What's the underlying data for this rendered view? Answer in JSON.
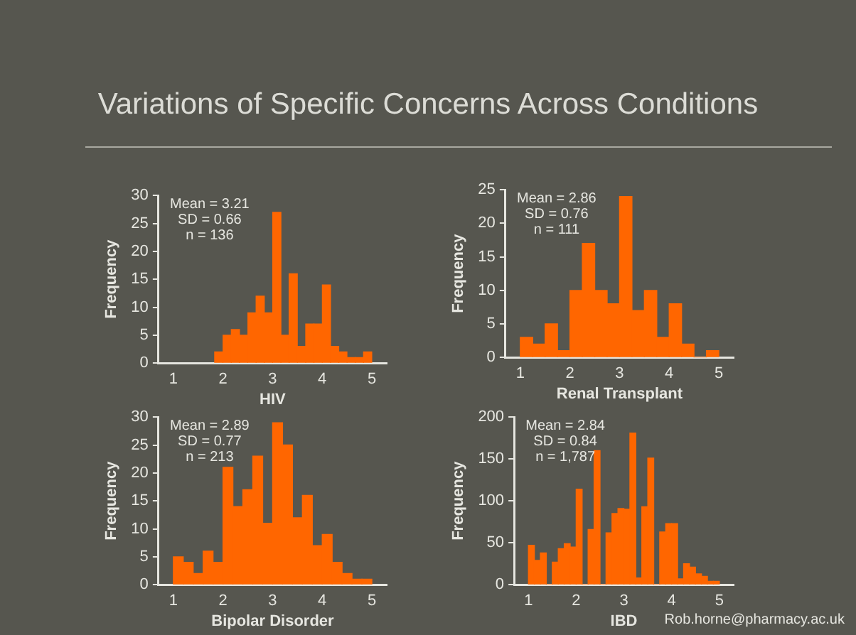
{
  "chart_data": [
    {
      "type": "histogram",
      "title": "Variations of Specific Concerns Across Conditions",
      "xlabel": "HIV",
      "ylabel": "Frequency",
      "color": "#ff6600",
      "bins": [
        1.83,
        2.0,
        2.17,
        2.33,
        2.5,
        2.67,
        2.83,
        3.0,
        3.17,
        3.33,
        3.5,
        3.67,
        3.83,
        4.0,
        4.17,
        4.33,
        4.5,
        4.67,
        4.83,
        5.0
      ],
      "values": [
        2,
        5,
        6,
        5,
        9,
        12,
        9,
        27,
        5,
        16,
        3,
        7,
        7,
        14,
        3,
        2,
        1,
        1,
        2
      ],
      "xlim": [
        0.7,
        5.3
      ],
      "xticks": [
        1,
        2,
        3,
        4,
        5
      ],
      "ylim": [
        0,
        30
      ],
      "yticks": [
        0,
        5,
        10,
        15,
        20,
        25,
        30
      ],
      "grid": false,
      "legend": false,
      "annotations": [
        "Mean = 3.21",
        "SD = 0.66",
        "n = 136"
      ]
    },
    {
      "type": "histogram",
      "xlabel": "Renal Transplant",
      "ylabel": "Frequency",
      "color": "#ff6600",
      "bins": [
        1.0,
        1.25,
        1.5,
        1.75,
        2.0,
        2.25,
        2.5,
        2.75,
        3.0,
        3.25,
        3.5,
        3.75,
        4.0,
        4.25,
        4.5,
        4.75,
        5.0
      ],
      "values": [
        3,
        2,
        5,
        1,
        10,
        17,
        10,
        8,
        24,
        7,
        10,
        3,
        8,
        2,
        0,
        1
      ],
      "xlim": [
        0.7,
        5.3
      ],
      "xticks": [
        1,
        2,
        3,
        4,
        5
      ],
      "ylim": [
        0,
        25
      ],
      "yticks": [
        0,
        5,
        10,
        15,
        20,
        25
      ],
      "grid": false,
      "legend": false,
      "annotations": [
        "Mean = 2.86",
        "SD = 0.76",
        "n = 111"
      ]
    },
    {
      "type": "histogram",
      "xlabel": "Bipolar Disorder",
      "ylabel": "Frequency",
      "color": "#ff6600",
      "bins": [
        1.0,
        1.2,
        1.4,
        1.6,
        1.8,
        2.0,
        2.2,
        2.4,
        2.6,
        2.8,
        3.0,
        3.2,
        3.4,
        3.6,
        3.8,
        4.0,
        4.2,
        4.4,
        4.6,
        4.8,
        5.0
      ],
      "values": [
        5,
        4,
        2,
        6,
        4,
        21,
        14,
        17,
        23,
        11,
        29,
        25,
        12,
        16,
        7,
        9,
        4,
        2,
        1,
        1
      ],
      "xlim": [
        0.7,
        5.3
      ],
      "xticks": [
        1,
        2,
        3,
        4,
        5
      ],
      "ylim": [
        0,
        30
      ],
      "yticks": [
        0,
        5,
        10,
        15,
        20,
        25,
        30
      ],
      "grid": false,
      "legend": false,
      "annotations": [
        "Mean = 2.89",
        "SD = 0.77",
        "n = 213"
      ]
    },
    {
      "type": "histogram",
      "xlabel": "IBD",
      "ylabel": "Frequency",
      "color": "#ff6600",
      "bins": [
        1.0,
        1.125,
        1.25,
        1.375,
        1.5,
        1.625,
        1.75,
        1.875,
        2.0,
        2.125,
        2.25,
        2.375,
        2.5,
        2.625,
        2.75,
        2.875,
        3.0,
        3.125,
        3.25,
        3.375,
        3.5,
        3.625,
        3.75,
        3.875,
        4.0,
        4.125,
        4.25,
        4.375,
        4.5,
        4.625,
        4.75,
        4.875,
        5.0
      ],
      "values": [
        47,
        29,
        38,
        0,
        27,
        43,
        49,
        45,
        114,
        0,
        66,
        160,
        0,
        62,
        85,
        91,
        90,
        181,
        8,
        93,
        151,
        0,
        63,
        73,
        73,
        7,
        25,
        21,
        13,
        10,
        4,
        4
      ],
      "xlim": [
        0.7,
        5.3
      ],
      "xticks": [
        1,
        2,
        3,
        4,
        5
      ],
      "ylim": [
        0,
        200
      ],
      "yticks": [
        0,
        50,
        100,
        150,
        200
      ],
      "grid": false,
      "legend": false,
      "annotations": [
        "Mean = 2.84",
        "SD = 0.84",
        "n = 1,787",
        "Rob.horne@pharmacy.ac.uk"
      ]
    }
  ]
}
